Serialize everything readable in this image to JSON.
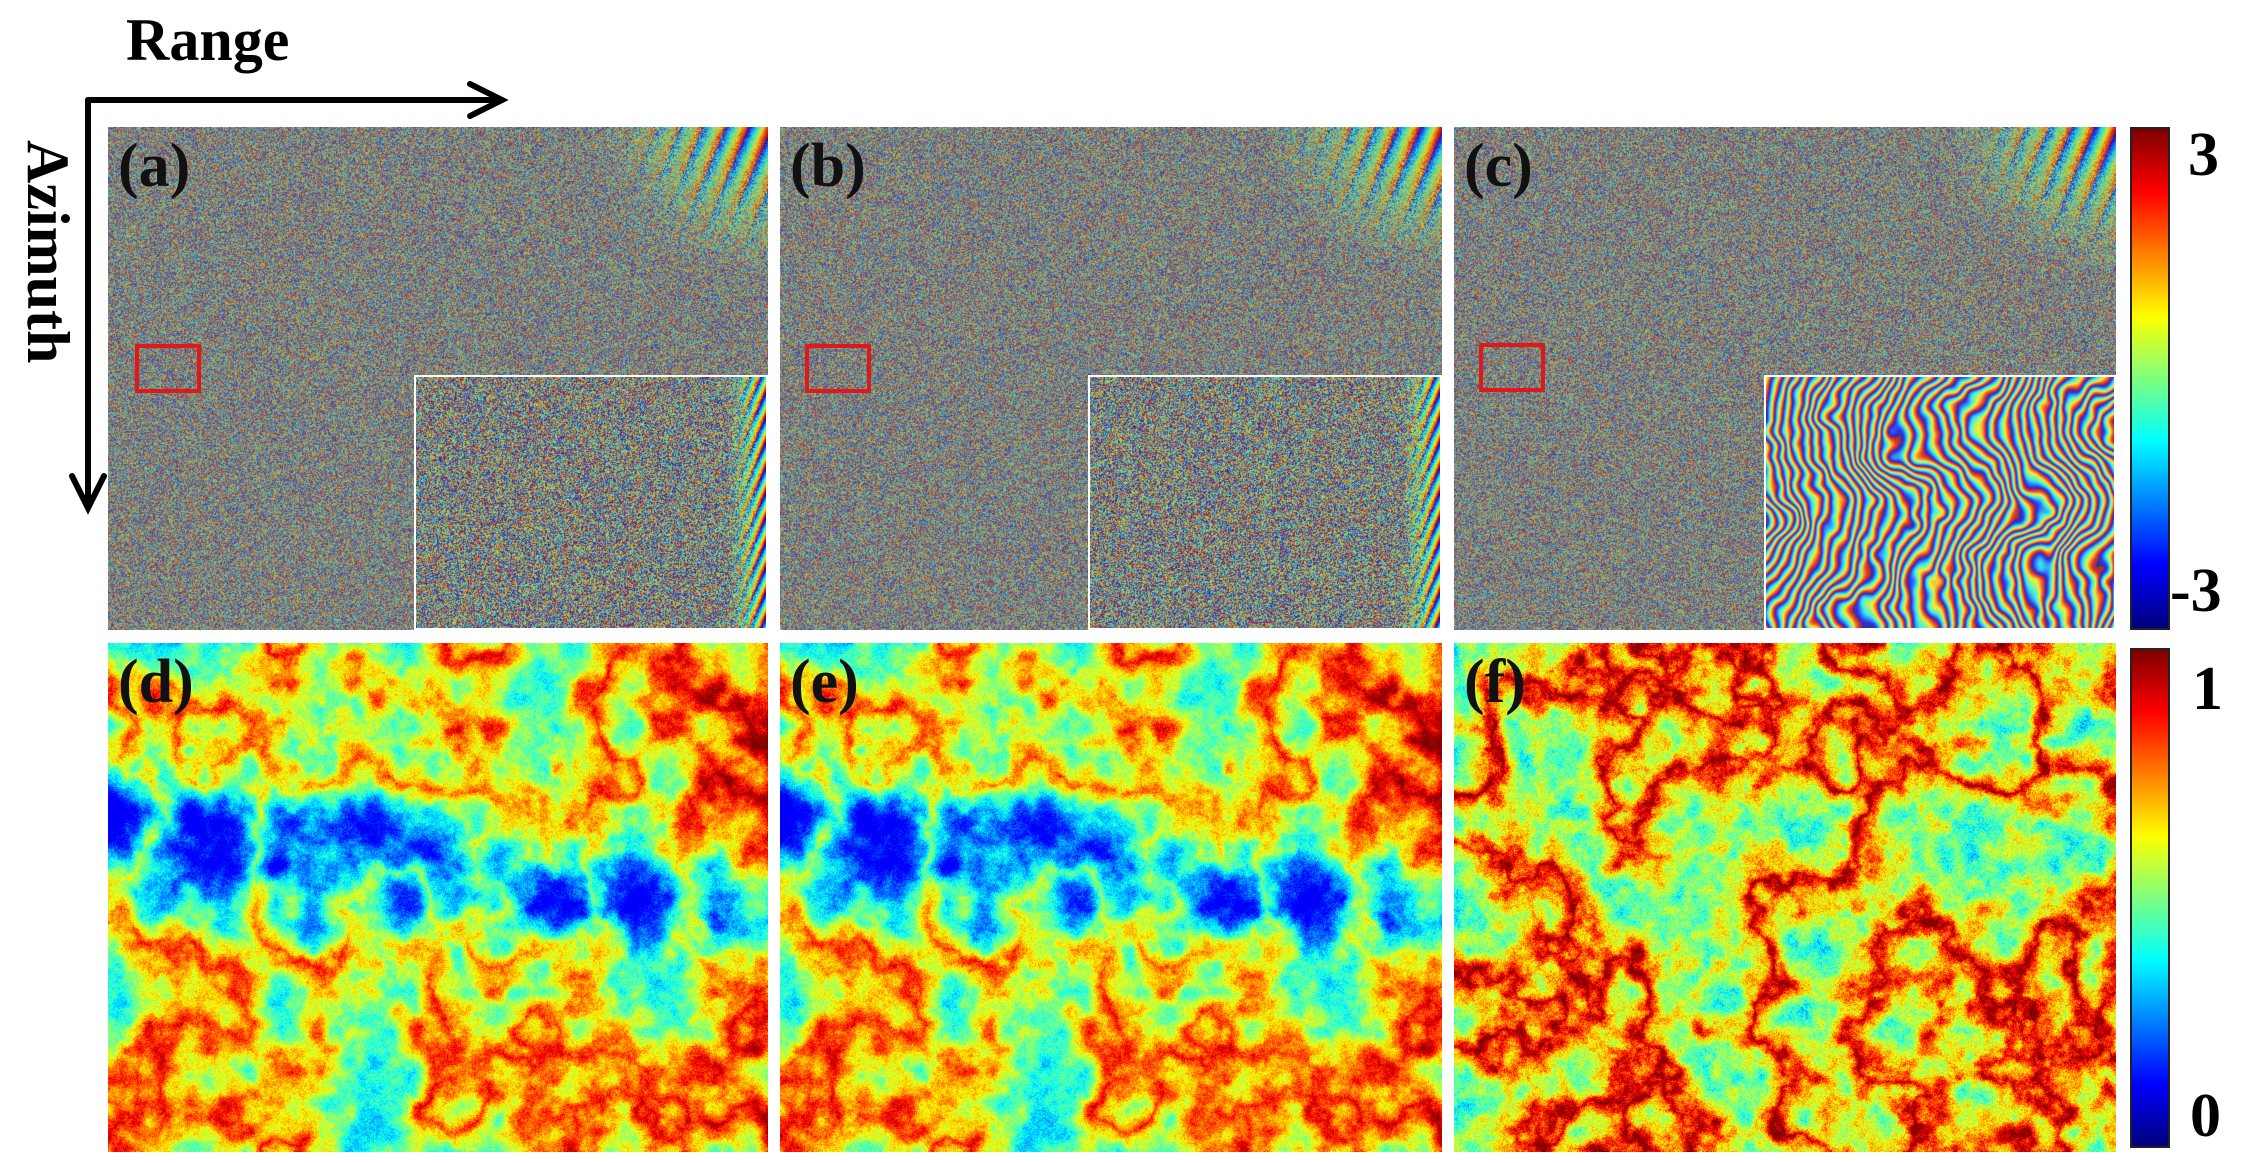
{
  "axes": {
    "range_label": "Range",
    "azimuth_label": "Azimuth"
  },
  "panels": [
    {
      "id": "a",
      "label": "(a)",
      "kind": "phase",
      "inset": "noise"
    },
    {
      "id": "b",
      "label": "(b)",
      "kind": "phase",
      "inset": "noise"
    },
    {
      "id": "c",
      "label": "(c)",
      "kind": "phase",
      "inset": "fringes"
    },
    {
      "id": "d",
      "label": "(d)",
      "kind": "coherence",
      "style": "low"
    },
    {
      "id": "e",
      "label": "(e)",
      "kind": "coherence",
      "style": "low"
    },
    {
      "id": "f",
      "label": "(f)",
      "kind": "coherence",
      "style": "high"
    }
  ],
  "colorbars": {
    "phase": {
      "max_label": "3",
      "min_label": "-3"
    },
    "coherence": {
      "max_label": "1",
      "min_label": "0"
    }
  },
  "colors": {
    "roi_box": "#e01818",
    "inset_border": "#ffffff",
    "colormap": "jet"
  }
}
